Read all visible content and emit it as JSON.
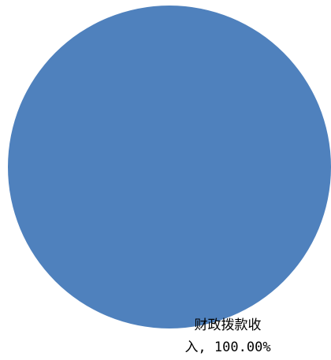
{
  "chart_data": {
    "type": "pie",
    "slices": [
      {
        "label": "财政拨款收入",
        "value": 100.0,
        "percent_text": "100.00%",
        "color": "#4F81BD"
      }
    ],
    "label_lines": [
      "财政拨款收",
      "入, 100.00%"
    ]
  }
}
